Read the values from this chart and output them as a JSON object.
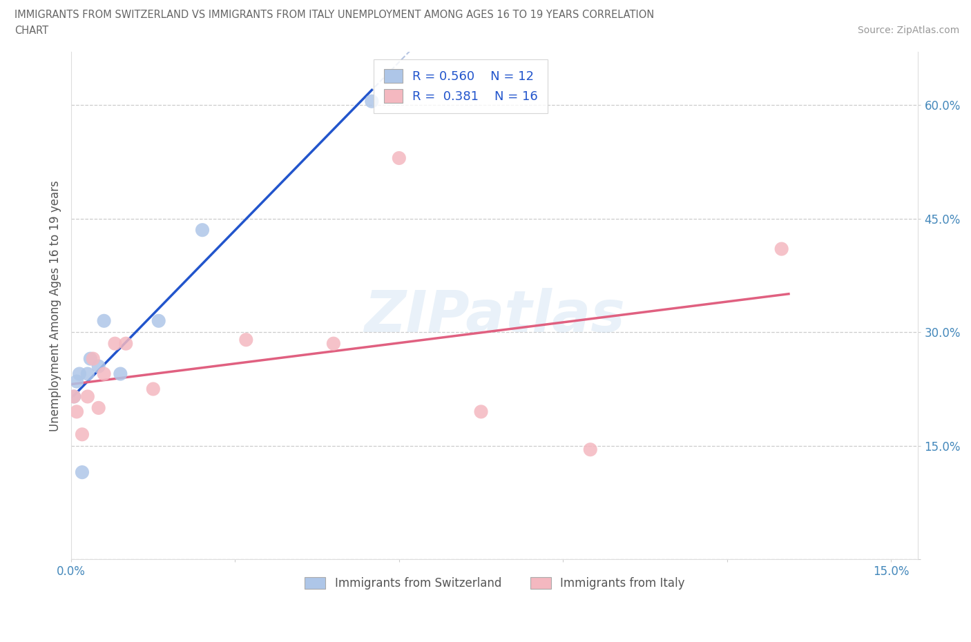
{
  "title_line1": "IMMIGRANTS FROM SWITZERLAND VS IMMIGRANTS FROM ITALY UNEMPLOYMENT AMONG AGES 16 TO 19 YEARS CORRELATION",
  "title_line2": "CHART",
  "source": "Source: ZipAtlas.com",
  "ylabel": "Unemployment Among Ages 16 to 19 years",
  "xlim": [
    0.0,
    0.155
  ],
  "ylim": [
    0.0,
    0.67
  ],
  "xticks": [
    0.0,
    0.03,
    0.06,
    0.09,
    0.12,
    0.15
  ],
  "yticks": [
    0.0,
    0.15,
    0.3,
    0.45,
    0.6
  ],
  "switzerland_x": [
    0.0005,
    0.001,
    0.0015,
    0.002,
    0.003,
    0.0035,
    0.005,
    0.006,
    0.009,
    0.016,
    0.024,
    0.055
  ],
  "switzerland_y": [
    0.215,
    0.235,
    0.245,
    0.115,
    0.245,
    0.265,
    0.255,
    0.315,
    0.245,
    0.315,
    0.435,
    0.605
  ],
  "italy_x": [
    0.0005,
    0.001,
    0.002,
    0.003,
    0.004,
    0.005,
    0.006,
    0.008,
    0.01,
    0.015,
    0.032,
    0.048,
    0.06,
    0.075,
    0.095,
    0.13
  ],
  "italy_y": [
    0.215,
    0.195,
    0.165,
    0.215,
    0.265,
    0.2,
    0.245,
    0.285,
    0.285,
    0.225,
    0.29,
    0.285,
    0.53,
    0.195,
    0.145,
    0.41
  ],
  "switzerland_scatter_color": "#aec6e8",
  "italy_scatter_color": "#f4b8c0",
  "switzerland_line_color": "#2255cc",
  "italy_line_color": "#e06080",
  "dashed_line_color": "#aabbdd",
  "R_switzerland": 0.56,
  "N_switzerland": 12,
  "R_italy": 0.381,
  "N_italy": 16,
  "legend_label_switzerland": "Immigrants from Switzerland",
  "legend_label_italy": "Immigrants from Italy",
  "watermark": "ZIPatlas",
  "background_color": "#ffffff",
  "grid_color": "#cccccc",
  "tick_color": "#4488bb",
  "title_color": "#666666",
  "ylabel_color": "#555555"
}
